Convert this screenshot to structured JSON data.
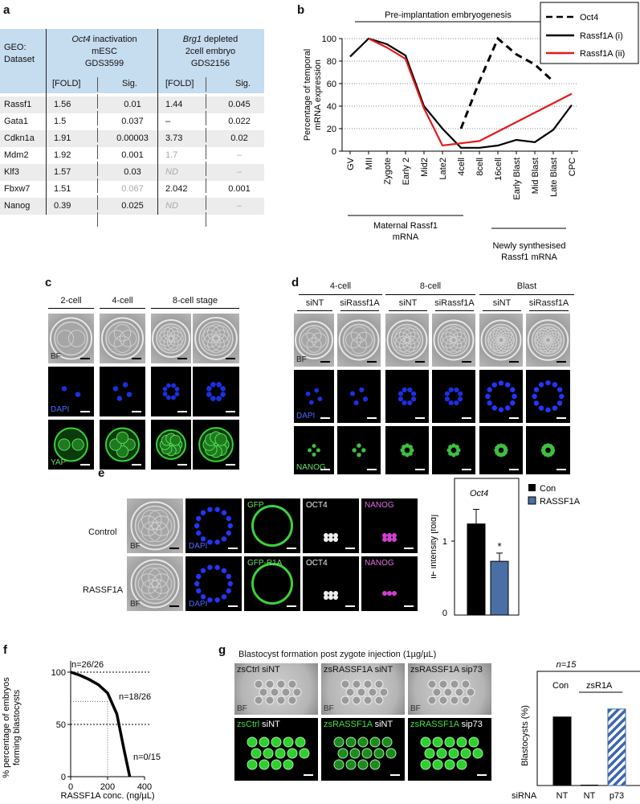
{
  "panel_a": {
    "letter": "a",
    "geo_label_1": "GEO:",
    "geo_label_2": "Dataset",
    "group1_line1_italic": "Oct4",
    "group1_line1_rest": " inactivation",
    "group1_line2": "mESC",
    "group1_line3": "GDS3599",
    "group2_line1_italic": "Brg1",
    "group2_line1_rest": " depleted",
    "group2_line2": "2cell embryo",
    "group2_line3": "GDS2156",
    "col_fold": "[FOLD]",
    "col_sig": "Sig.",
    "rows": [
      {
        "gene": "Rassf1",
        "f1": "1.56",
        "s1": "0.01",
        "f2": "1.44",
        "s2": "0.045"
      },
      {
        "gene": "Gata1",
        "f1": "1.5",
        "s1": "0.037",
        "f2": "–",
        "s2": "0.022"
      },
      {
        "gene": "Cdkn1a",
        "f1": "1.91",
        "s1": "0.00003",
        "f2": "3.73",
        "s2": "0.02"
      },
      {
        "gene": "Mdm2",
        "f1": "1.92",
        "s1": "0.001",
        "f2": "1.7",
        "s2": "–"
      },
      {
        "gene": "Klf3",
        "f1": "1.57",
        "s1": "0.03",
        "f2": "ND",
        "s2": "–"
      },
      {
        "gene": "Fbxw7",
        "f1": "1.51",
        "s1": "0.067",
        "f2": "2.042",
        "s2": "0.001"
      },
      {
        "gene": "Nanog",
        "f1": "0.39",
        "s1": "0.025",
        "f2": "ND",
        "s2": "–"
      }
    ]
  },
  "panel_b": {
    "letter": "b",
    "top_label": "Pre-implantation embryogenesis",
    "ylabel_1": "Percentage of temporal",
    "ylabel_2": "mRNA expression",
    "bottom_left_1": "Maternal Rassf1",
    "bottom_left_2": "mRNA",
    "bottom_right_1": "Newly synthesised",
    "bottom_right_2": "Rassf1 mRNA",
    "colors": {
      "oct4": "#000000",
      "r1": "#000000",
      "r2": "#e41a1c"
    }
  },
  "chart_data": [
    {
      "type": "line",
      "categories": [
        "GV",
        "MII",
        "Zygote",
        "Early 2",
        "Mid2",
        "Late2",
        "4cell",
        "8cell",
        "16cell",
        "Early Blast",
        "Mid Blast",
        "Late Blast",
        "CPC"
      ],
      "ylim": [
        0,
        100
      ],
      "yticks": [
        0,
        20,
        40,
        60,
        80,
        100
      ],
      "series": [
        {
          "name": "Oct4",
          "style": "dashed",
          "values": [
            null,
            null,
            null,
            null,
            null,
            null,
            20,
            62,
            100,
            86,
            77,
            62,
            null
          ]
        },
        {
          "name": "Rassf1A (i)",
          "style": "solid",
          "values": [
            84,
            100,
            95,
            85,
            40,
            20,
            3,
            3,
            5,
            10,
            8,
            19,
            41
          ]
        },
        {
          "name": "Rassf1A (ii)",
          "style": "solid",
          "values": [
            null,
            100,
            92,
            82,
            38,
            5,
            7,
            9,
            null,
            null,
            null,
            null,
            51
          ]
        }
      ],
      "legend_position": "top-right"
    },
    {
      "type": "bar",
      "title": "Oct4",
      "ylabel": "IF intensity [fold]",
      "categories": [
        "Con",
        "RASSF1A"
      ],
      "values": [
        1.0,
        0.59
      ],
      "errors": [
        0.16,
        0.09
      ],
      "ylim": [
        0,
        1.5
      ],
      "yticks": [
        0,
        1
      ],
      "annotation": "*",
      "colors": [
        "#000000",
        "#4a6fa5"
      ]
    },
    {
      "type": "line",
      "xlabel": "RASSF1A conc. (ng/µL)",
      "ylabel": "% percentage of embryos forming blastocysts",
      "x": [
        0,
        50,
        100,
        150,
        200,
        250,
        290,
        320
      ],
      "y": [
        100,
        97,
        93,
        88,
        80,
        60,
        25,
        0
      ],
      "xlim": [
        0,
        400
      ],
      "ylim": [
        0,
        100
      ],
      "xticks": [
        0,
        200,
        400
      ],
      "yticks": [
        0,
        50,
        100
      ],
      "annotations": [
        "n=26/26",
        "n=18/26",
        "n=0/15"
      ]
    },
    {
      "type": "bar",
      "title": "n=15",
      "ylabel": "Blastocysts (%)",
      "categories": [
        "NT",
        "NT",
        "p73"
      ],
      "values": [
        60,
        0,
        67
      ],
      "ylim": [
        0,
        100
      ],
      "group_labels": [
        "Con",
        "zsR1A"
      ],
      "x_row_label": "siRNA"
    }
  ],
  "panel_c": {
    "letter": "c",
    "stages": [
      "2-cell",
      "4-cell",
      "8-cell stage"
    ],
    "rows": [
      "BF",
      "DAPI",
      "YAP"
    ]
  },
  "panel_d": {
    "letter": "d",
    "stages": [
      "4-cell",
      "8-cell",
      "Blast"
    ],
    "sub": [
      "siNT",
      "siRassf1A",
      "siNT",
      "siRassf1A",
      "siNT",
      "siRassf1A"
    ],
    "rows": [
      "BF",
      "DAPI",
      "NANOG"
    ]
  },
  "panel_e": {
    "letter": "e",
    "row_control": "Control",
    "row_rassf": "RASSF1A",
    "ch": {
      "bf": "BF",
      "dapi": "DAPI",
      "gfp": "GFP",
      "gfp2": "GFP-R1A",
      "oct4": "OCT4",
      "nanog": "NANOG"
    },
    "bar_title": "Oct4",
    "legend_con": "Con",
    "legend_r": "RASSF1A",
    "ylabel": "IF intensity [fold]",
    "star": "*"
  },
  "panel_f": {
    "letter": "f",
    "ylabel_1": "% percentage of embryos",
    "ylabel_2": "forming blastocysts",
    "xlabel": "RASSF1A conc. (ng/µL)",
    "n1": "n=26/26",
    "n2": "n=18/26",
    "n3": "n=0/15"
  },
  "panel_g": {
    "letter": "g",
    "title": "Blastocyst formation post zygote injection (1µg/µL)",
    "bf_labels": [
      "zsCtrl siNT",
      "zsRASSF1A siNT",
      "zsRASSF1A sip73"
    ],
    "fl_green": [
      "zsCtrl",
      "zsRASSF1A",
      "zsRASSF1A"
    ],
    "fl_white": [
      " siNT",
      " siNT",
      " sip73"
    ],
    "bf": "BF",
    "bar_n": "n=15",
    "con": "Con",
    "zsr": "zsR1A",
    "ylabel": "Blastocysts (%)",
    "sirna": "siRNA",
    "x": [
      "NT",
      "NT",
      "p73"
    ]
  }
}
